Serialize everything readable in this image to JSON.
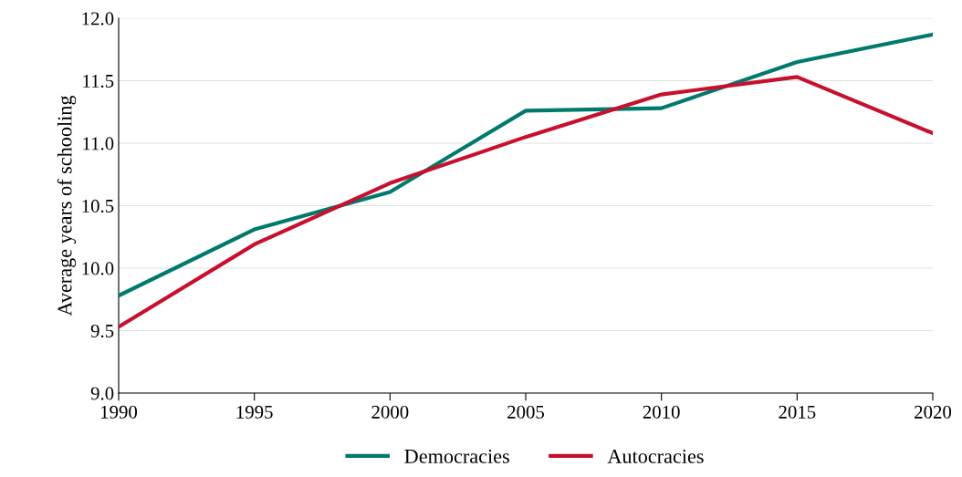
{
  "chart_data": {
    "type": "line",
    "ylabel": "Average years of schooling",
    "x": [
      1990,
      1995,
      2000,
      2005,
      2010,
      2015,
      2020
    ],
    "series": [
      {
        "name": "Democracies",
        "color": "#007a6c",
        "values": [
          9.78,
          10.31,
          10.61,
          11.26,
          11.28,
          11.65,
          11.87
        ]
      },
      {
        "name": "Autocracies",
        "color": "#c8102e",
        "values": [
          9.53,
          10.19,
          10.68,
          11.05,
          11.39,
          11.53,
          11.08
        ]
      }
    ],
    "xlim": [
      1990,
      2020
    ],
    "xticks": [
      1990,
      1995,
      2000,
      2005,
      2010,
      2015,
      2020
    ],
    "ylim": [
      9.0,
      12.0
    ],
    "yticks": [
      {
        "value": 9.0,
        "label": "9.0"
      },
      {
        "value": 9.5,
        "label": "9.5"
      },
      {
        "value": 10.0,
        "label": "10.0"
      },
      {
        "value": 10.5,
        "label": "10.5"
      },
      {
        "value": 11.0,
        "label": "11.0"
      },
      {
        "value": 11.5,
        "label": "11.5"
      },
      {
        "value": 12.0,
        "label": "12.0"
      }
    ],
    "grid": "y",
    "legend": "bottom",
    "marker": "none",
    "line_style": "solid"
  }
}
